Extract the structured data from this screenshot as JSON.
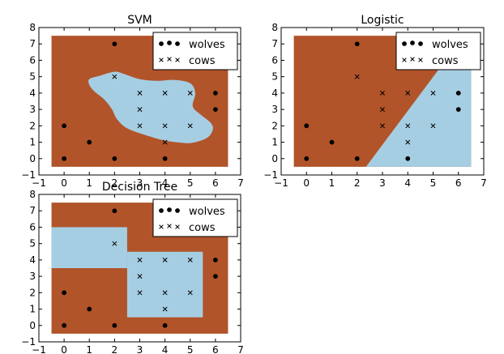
{
  "colors": {
    "wolves_region": "#b1542a",
    "cows_region": "#a6cee3",
    "marker": "#000000",
    "frame": "#000000",
    "background": "#ffffff"
  },
  "chart_data": [
    {
      "type": "scatter",
      "title": "SVM",
      "xlim": [
        -1,
        7
      ],
      "ylim": [
        -1,
        8
      ],
      "xticks": [
        "−1",
        "0",
        "1",
        "2",
        "3",
        "4",
        "5",
        "6",
        "7"
      ],
      "yticks": [
        "−1",
        "0",
        "1",
        "2",
        "3",
        "4",
        "5",
        "6",
        "7",
        "8"
      ],
      "legend_position": "upper-right",
      "decision_boundary": "smooth blob",
      "series": [
        {
          "name": "wolves",
          "marker": "dot",
          "points": [
            [
              0,
              0
            ],
            [
              0,
              2
            ],
            [
              1,
              1
            ],
            [
              2,
              0
            ],
            [
              2,
              7
            ],
            [
              4,
              0
            ],
            [
              6,
              3
            ],
            [
              6,
              4
            ]
          ]
        },
        {
          "name": "cows",
          "marker": "x",
          "points": [
            [
              2,
              5
            ],
            [
              3,
              2
            ],
            [
              3,
              3
            ],
            [
              3,
              4
            ],
            [
              4,
              1
            ],
            [
              4,
              2
            ],
            [
              4,
              4
            ],
            [
              5,
              2
            ],
            [
              5,
              4
            ]
          ]
        }
      ]
    },
    {
      "type": "scatter",
      "title": "Logistic",
      "xlim": [
        -1,
        7
      ],
      "ylim": [
        -1,
        8
      ],
      "xticks": [
        "−1",
        "0",
        "1",
        "2",
        "3",
        "4",
        "5",
        "6",
        "7"
      ],
      "yticks": [
        "−1",
        "0",
        "1",
        "2",
        "3",
        "4",
        "5",
        "6",
        "7",
        "8"
      ],
      "legend_position": "upper-right",
      "decision_boundary": "linear",
      "series": [
        {
          "name": "wolves",
          "marker": "dot",
          "points": [
            [
              0,
              0
            ],
            [
              0,
              2
            ],
            [
              1,
              1
            ],
            [
              2,
              0
            ],
            [
              2,
              7
            ],
            [
              4,
              0
            ],
            [
              6,
              3
            ],
            [
              6,
              4
            ]
          ]
        },
        {
          "name": "cows",
          "marker": "x",
          "points": [
            [
              2,
              5
            ],
            [
              3,
              2
            ],
            [
              3,
              3
            ],
            [
              3,
              4
            ],
            [
              4,
              1
            ],
            [
              4,
              2
            ],
            [
              4,
              4
            ],
            [
              5,
              2
            ],
            [
              5,
              4
            ]
          ]
        }
      ]
    },
    {
      "type": "scatter",
      "title": "Decision Tree",
      "xlim": [
        -1,
        7
      ],
      "ylim": [
        -1,
        8
      ],
      "xticks": [
        "−1",
        "0",
        "1",
        "2",
        "3",
        "4",
        "5",
        "6",
        "7"
      ],
      "yticks": [
        "−1",
        "0",
        "1",
        "2",
        "3",
        "4",
        "5",
        "6",
        "7",
        "8"
      ],
      "legend_position": "upper-right",
      "decision_boundary": "axis-aligned rectangles",
      "series": [
        {
          "name": "wolves",
          "marker": "dot",
          "points": [
            [
              0,
              0
            ],
            [
              0,
              2
            ],
            [
              1,
              1
            ],
            [
              2,
              0
            ],
            [
              2,
              7
            ],
            [
              4,
              0
            ],
            [
              6,
              3
            ],
            [
              6,
              4
            ]
          ]
        },
        {
          "name": "cows",
          "marker": "x",
          "points": [
            [
              2,
              5
            ],
            [
              3,
              2
            ],
            [
              3,
              3
            ],
            [
              3,
              4
            ],
            [
              4,
              1
            ],
            [
              4,
              2
            ],
            [
              4,
              4
            ],
            [
              5,
              2
            ],
            [
              5,
              4
            ]
          ]
        }
      ]
    }
  ]
}
